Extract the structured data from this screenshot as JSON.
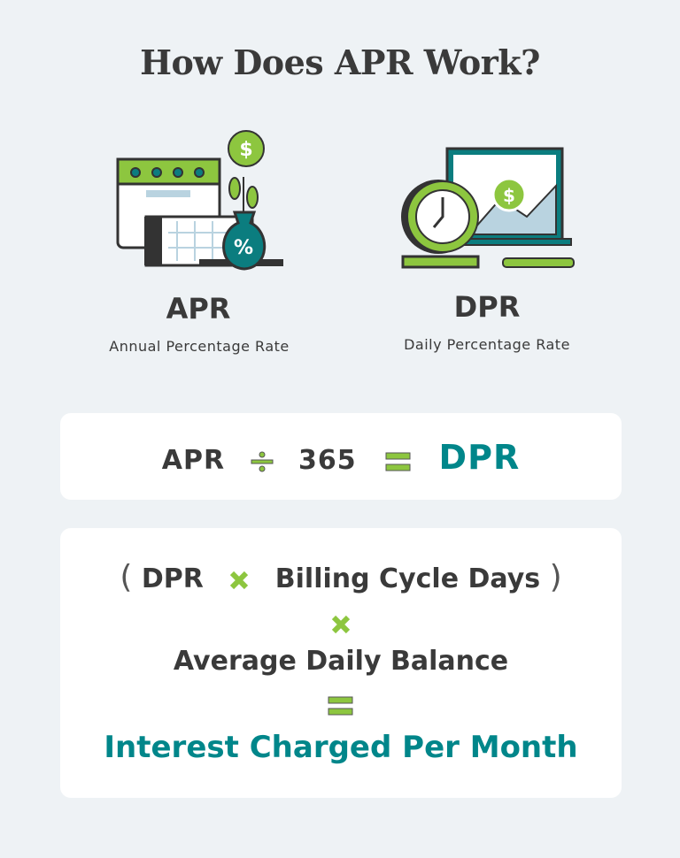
{
  "title": "How Does APR Work?",
  "apr": {
    "abbr": "APR",
    "full": "Annual Percentage Rate"
  },
  "dpr": {
    "abbr": "DPR",
    "full": "Daily Percentage Rate"
  },
  "formula1": {
    "left": "APR",
    "divisor": "365",
    "result": "DPR"
  },
  "formula2": {
    "open_paren": "(",
    "term1": "DPR",
    "term2": "Billing Cycle Days",
    "close_paren": ")",
    "term3": "Average Daily Balance",
    "result": "Interest Charged Per Month"
  },
  "colors": {
    "background": "#eef2f5",
    "green": "#8dc63f",
    "teal": "#00868a",
    "text": "#3a3a3a"
  }
}
